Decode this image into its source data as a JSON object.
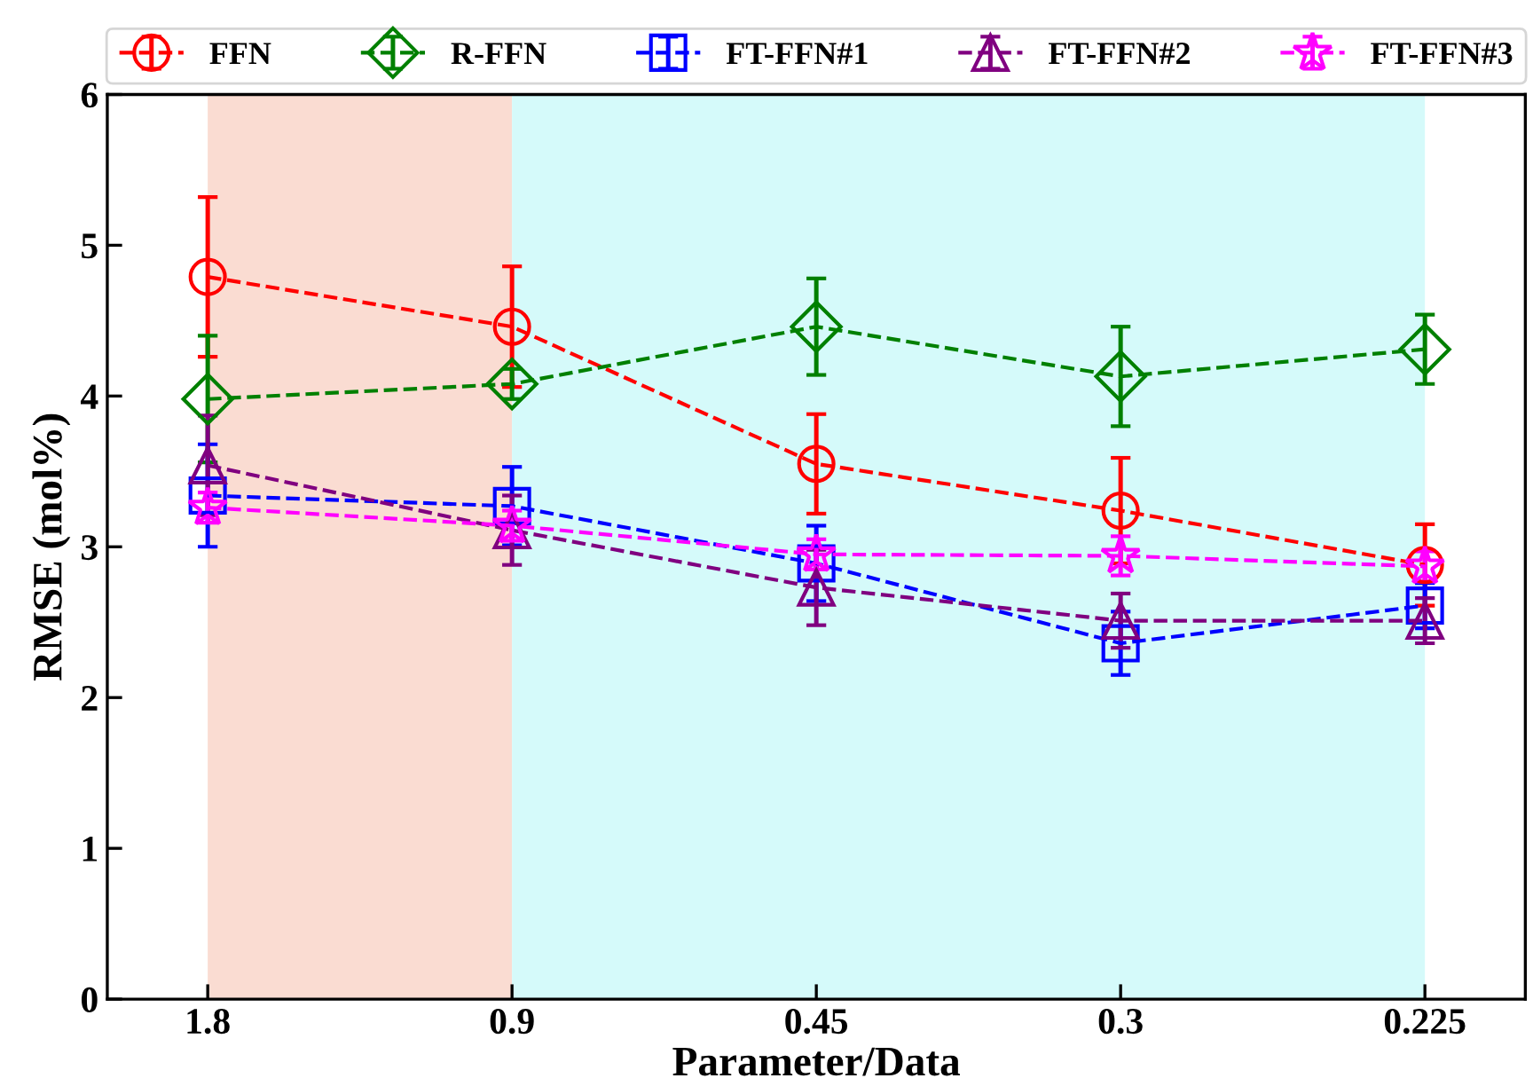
{
  "chart_data": {
    "type": "line",
    "xlabel": "Parameter/Data",
    "ylabel": "RMSE (mol%)",
    "categories": [
      "1.8",
      "0.9",
      "0.45",
      "0.3",
      "0.225"
    ],
    "ylim": [
      0,
      6
    ],
    "yticks": [
      0,
      1,
      2,
      3,
      4,
      5,
      6
    ],
    "grid": false,
    "legend": "top",
    "line_style": "dashed",
    "bands": [
      {
        "axis": "x",
        "from": "1.8",
        "to": "0.9",
        "color": "#fadcd2"
      },
      {
        "axis": "x",
        "from": "0.9",
        "to": "0.225",
        "color": "#d5fafa"
      }
    ],
    "series": [
      {
        "name": "FFN",
        "color": "#ff0000",
        "marker": "circle",
        "values": [
          4.79,
          4.46,
          3.55,
          3.24,
          2.88
        ],
        "errors": [
          0.53,
          0.4,
          0.33,
          0.35,
          0.27
        ]
      },
      {
        "name": "R-FFN",
        "color": "#008000",
        "marker": "diamond",
        "values": [
          3.98,
          4.08,
          4.46,
          4.13,
          4.31
        ],
        "errors": [
          0.42,
          0.1,
          0.32,
          0.33,
          0.23
        ]
      },
      {
        "name": "FT-FFN#1",
        "color": "#0000ff",
        "marker": "square",
        "values": [
          3.34,
          3.27,
          2.89,
          2.36,
          2.61
        ],
        "errors": [
          0.34,
          0.26,
          0.25,
          0.21,
          0.15
        ]
      },
      {
        "name": "FT-FFN#2",
        "color": "#800080",
        "marker": "triangle",
        "values": [
          3.54,
          3.11,
          2.73,
          2.51,
          2.51
        ],
        "errors": [
          0.33,
          0.23,
          0.25,
          0.18,
          0.15
        ]
      },
      {
        "name": "FT-FFN#3",
        "color": "#ff00ff",
        "marker": "star",
        "values": [
          3.26,
          3.14,
          2.95,
          2.94,
          2.87
        ],
        "errors": [
          0.1,
          0.1,
          0.1,
          0.13,
          0.1
        ]
      }
    ]
  }
}
